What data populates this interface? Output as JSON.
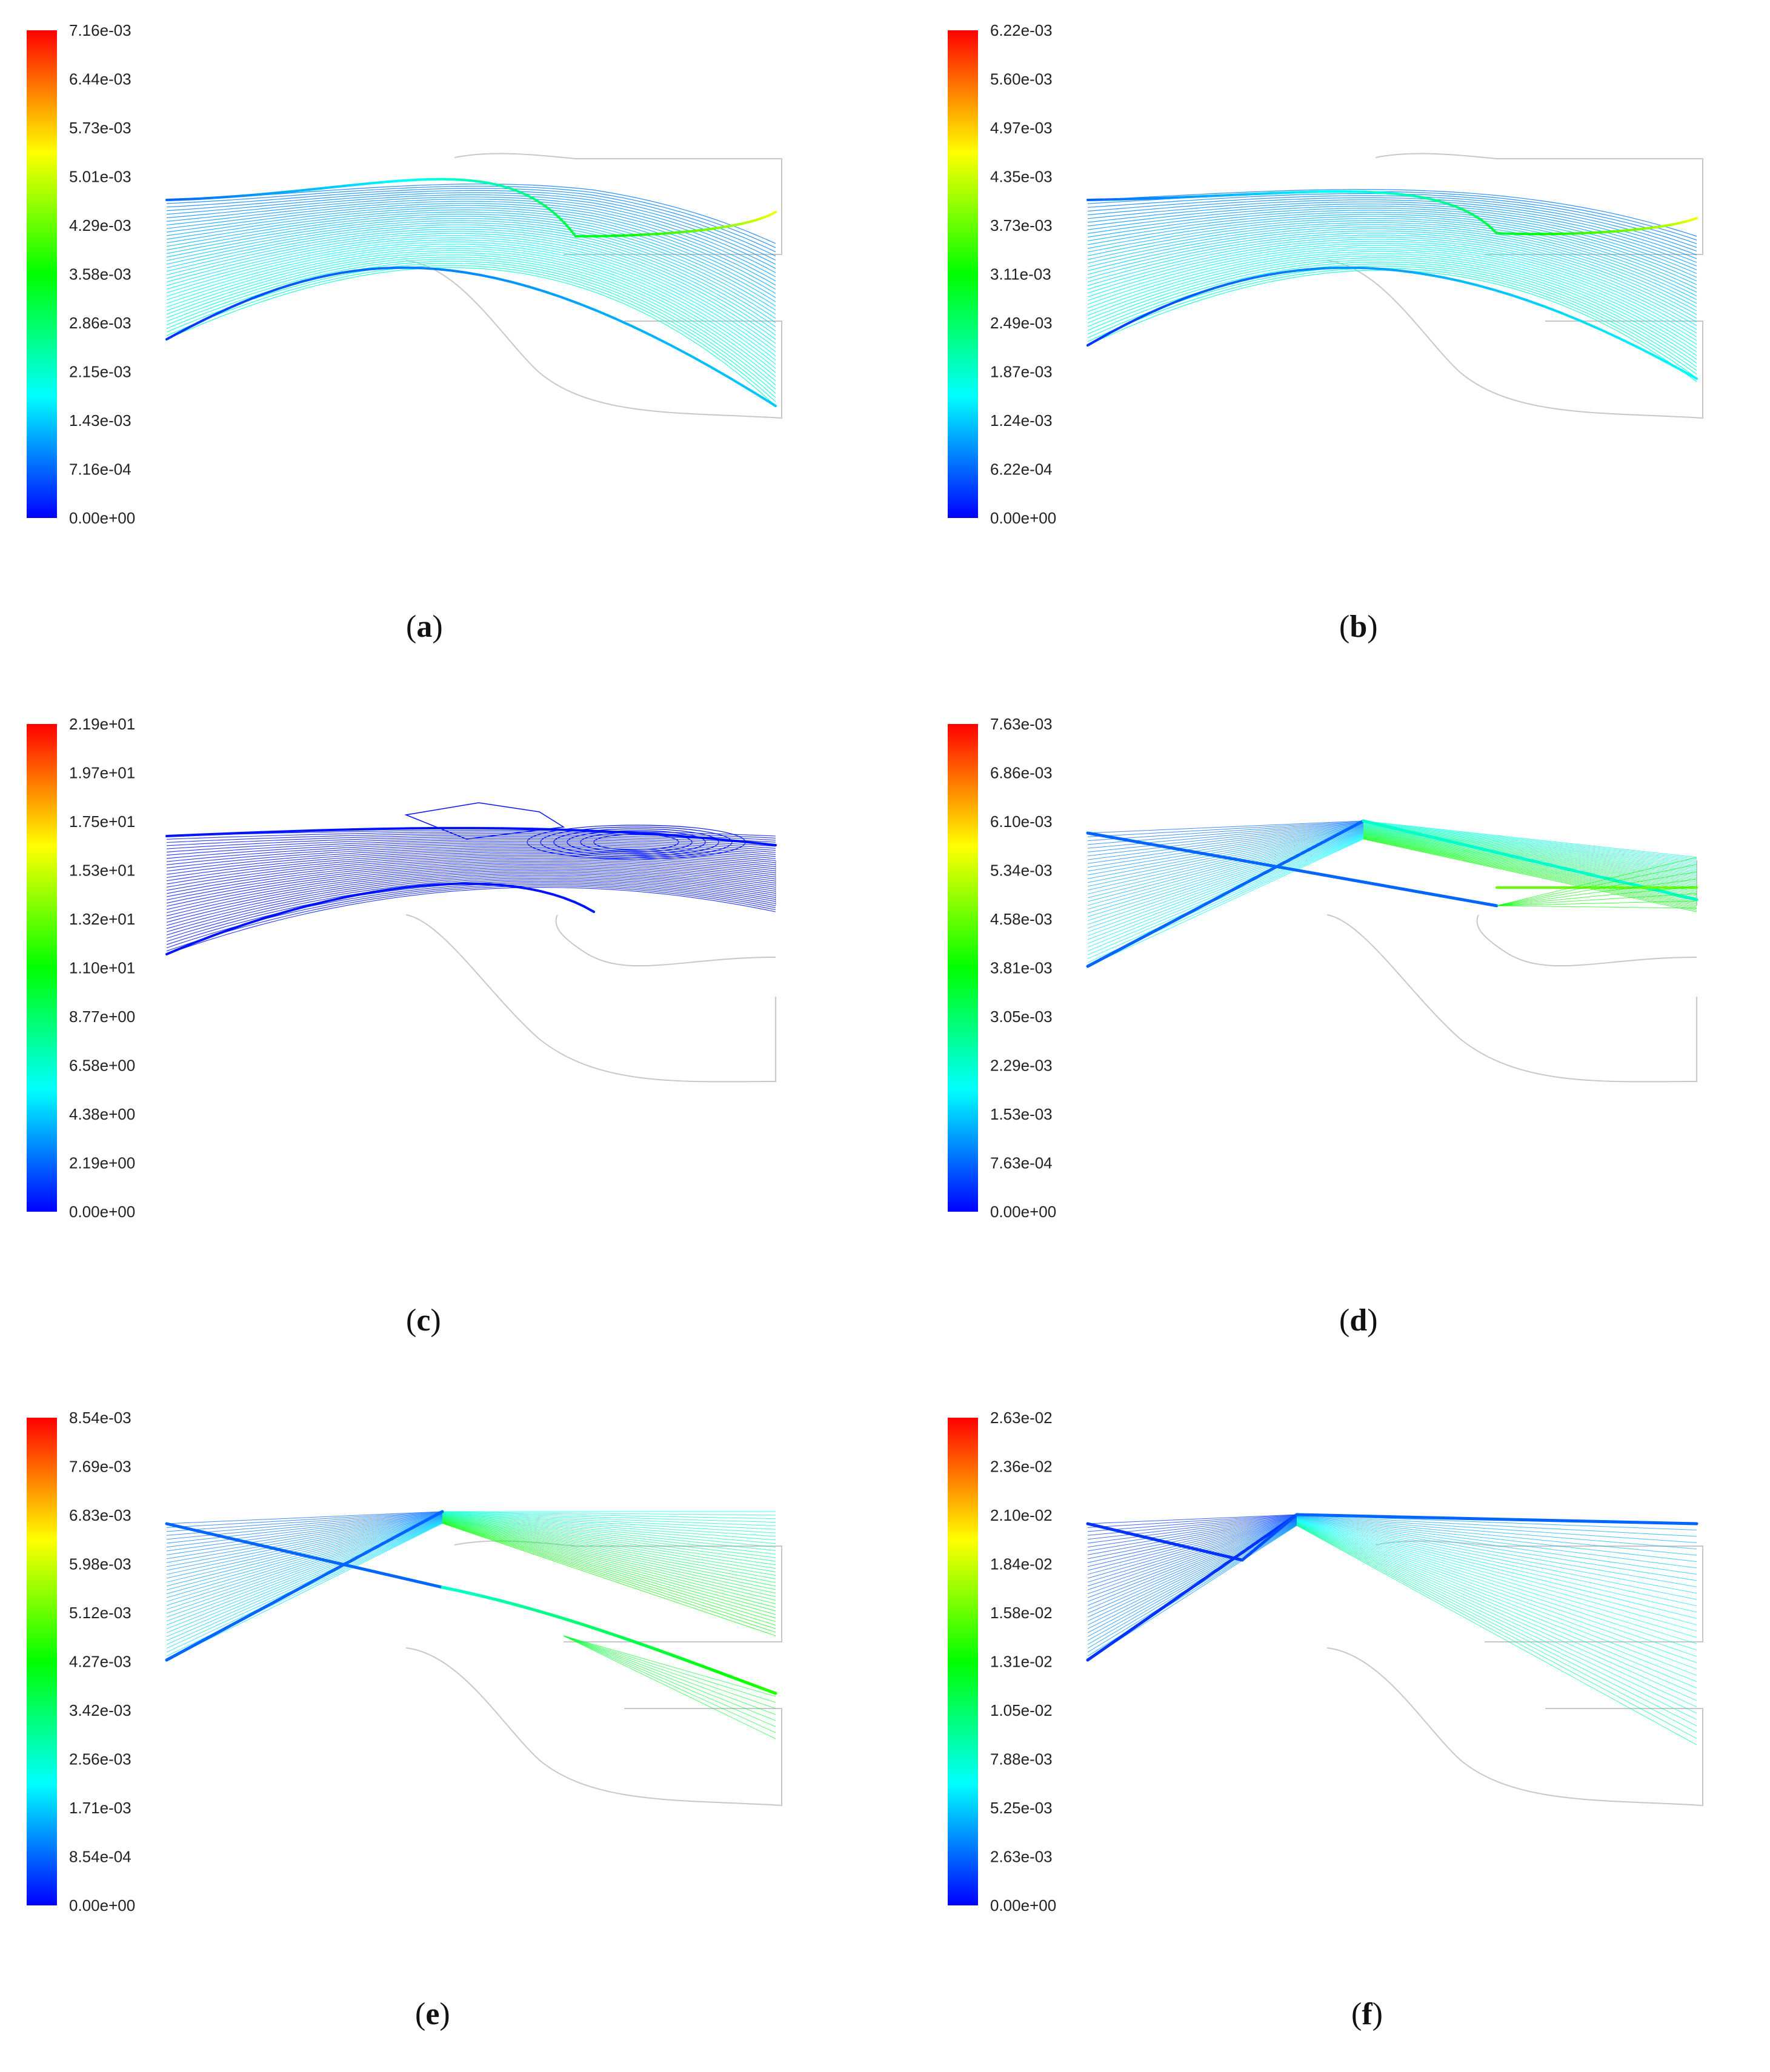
{
  "colors": {
    "colormap": [
      "#0000ff",
      "#0080ff",
      "#00ffff",
      "#00ff80",
      "#00ff00",
      "#80ff00",
      "#ffff00",
      "#ff8000",
      "#ff0000"
    ],
    "geometry_outline": "#c8c8c8",
    "tick_text": "#222222"
  },
  "panels": [
    {
      "label": "a",
      "scale_ticks": [
        "7.16e-03",
        "6.44e-03",
        "5.73e-03",
        "5.01e-03",
        "4.29e-03",
        "3.58e-03",
        "2.86e-03",
        "2.15e-03",
        "1.43e-03",
        "7.16e-04",
        "0.00e+00"
      ]
    },
    {
      "label": "b",
      "scale_ticks": [
        "6.22e-03",
        "5.60e-03",
        "4.97e-03",
        "4.35e-03",
        "3.73e-03",
        "3.11e-03",
        "2.49e-03",
        "1.87e-03",
        "1.24e-03",
        "6.22e-04",
        "0.00e+00"
      ]
    },
    {
      "label": "c",
      "scale_ticks": [
        "2.19e+01",
        "1.97e+01",
        "1.75e+01",
        "1.53e+01",
        "1.32e+01",
        "1.10e+01",
        "8.77e+00",
        "6.58e+00",
        "4.38e+00",
        "2.19e+00",
        "0.00e+00"
      ]
    },
    {
      "label": "d",
      "scale_ticks": [
        "7.63e-03",
        "6.86e-03",
        "6.10e-03",
        "5.34e-03",
        "4.58e-03",
        "3.81e-03",
        "3.05e-03",
        "2.29e-03",
        "1.53e-03",
        "7.63e-04",
        "0.00e+00"
      ]
    },
    {
      "label": "e",
      "scale_ticks": [
        "8.54e-03",
        "7.69e-03",
        "6.83e-03",
        "5.98e-03",
        "5.12e-03",
        "4.27e-03",
        "3.42e-03",
        "2.56e-03",
        "1.71e-03",
        "8.54e-04",
        "0.00e+00"
      ]
    },
    {
      "label": "f",
      "scale_ticks": [
        "2.63e-02",
        "2.36e-02",
        "2.10e-02",
        "1.84e-02",
        "1.58e-02",
        "1.31e-02",
        "1.05e-02",
        "7.88e-03",
        "5.25e-03",
        "2.63e-03",
        "0.00e+00"
      ]
    }
  ]
}
